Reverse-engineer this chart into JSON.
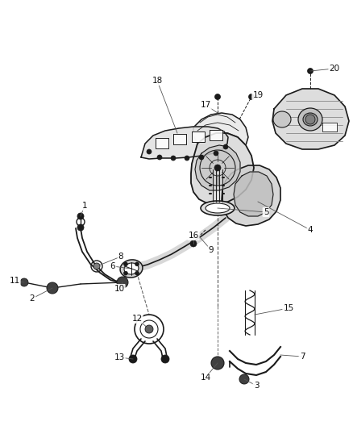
{
  "bg_color": "#ffffff",
  "line_color": "#1a1a1a",
  "label_color": "#111111",
  "fig_width": 4.38,
  "fig_height": 5.33,
  "dpi": 100
}
